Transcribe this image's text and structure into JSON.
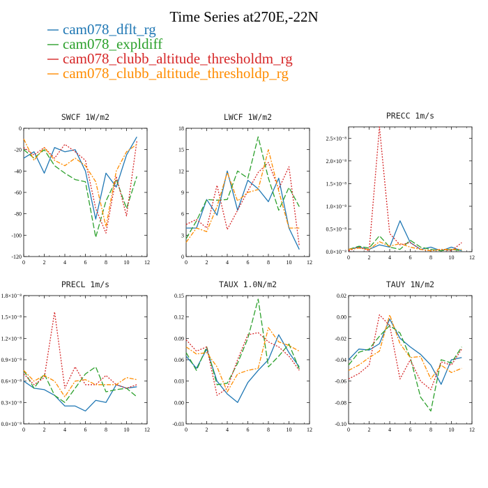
{
  "figure": {
    "title": "Time Series at270E,-22N",
    "legend": [
      {
        "label": "cam078_dflt_rg",
        "color": "#1f77b4"
      },
      {
        "label": "cam078_expldiff",
        "color": "#2ca02c"
      },
      {
        "label": "cam078_clubb_altitude_thresholdm_rg",
        "color": "#d62728"
      },
      {
        "label": "cam078_clubb_altitude_thresholdp_rg",
        "color": "#ff8c00"
      }
    ]
  },
  "chart_data": [
    {
      "type": "line",
      "title": "SWCF  1W/m2",
      "x": [
        0,
        1,
        2,
        3,
        4,
        5,
        6,
        7,
        8,
        9,
        10,
        11
      ],
      "xlim": [
        0,
        12
      ],
      "ylim": [
        -120,
        0
      ],
      "xticks": [
        "0",
        "2",
        "4",
        "6",
        "8",
        "10",
        "12"
      ],
      "yticks": [
        "0",
        "-20",
        "-40",
        "-60",
        "-80",
        "-100",
        "-120"
      ],
      "series": [
        {
          "name": "cam078_dflt_rg",
          "values": [
            -28,
            -22,
            -42,
            -18,
            -22,
            -20,
            -40,
            -85,
            -42,
            -55,
            -25,
            -8
          ]
        },
        {
          "name": "cam078_expldiff",
          "values": [
            -20,
            -28,
            -20,
            -35,
            -42,
            -48,
            -50,
            -102,
            -68,
            -48,
            -75,
            -45
          ]
        },
        {
          "name": "cam078_clubb_altitude_thresholdm_rg",
          "values": [
            -18,
            -25,
            -18,
            -28,
            -15,
            -22,
            -30,
            -75,
            -98,
            -45,
            -82,
            -12
          ]
        },
        {
          "name": "cam078_clubb_altitude_thresholdp_rg",
          "values": [
            -10,
            -30,
            -18,
            -30,
            -35,
            -28,
            -35,
            -50,
            -92,
            -40,
            -22,
            -15
          ]
        }
      ]
    },
    {
      "type": "line",
      "title": "LWCF  1W/m2",
      "x": [
        0,
        1,
        2,
        3,
        4,
        5,
        6,
        7,
        8,
        9,
        10,
        11
      ],
      "xlim": [
        0,
        12
      ],
      "ylim": [
        0,
        18
      ],
      "xticks": [
        "0",
        "2",
        "4",
        "6",
        "8",
        "10",
        "12"
      ],
      "yticks": [
        "0",
        "3",
        "6",
        "9",
        "12",
        "15",
        "18"
      ],
      "series": [
        {
          "name": "cam078_dflt_rg",
          "values": [
            4,
            4,
            8,
            5.8,
            12,
            6.5,
            10.7,
            9.5,
            7.7,
            11,
            4,
            1
          ]
        },
        {
          "name": "cam078_expldiff",
          "values": [
            2.5,
            5,
            8,
            7.9,
            8,
            12,
            11,
            16.8,
            11,
            6.5,
            9.7,
            7
          ]
        },
        {
          "name": "cam078_clubb_altitude_thresholdm_rg",
          "values": [
            4.5,
            5.2,
            4,
            10,
            3.8,
            6.5,
            9.2,
            11.8,
            13.2,
            9.5,
            12.6,
            1.5
          ]
        },
        {
          "name": "cam078_clubb_altitude_thresholdp_rg",
          "values": [
            2,
            4,
            3.5,
            7,
            11.8,
            7.8,
            9,
            9.4,
            15,
            9.2,
            4,
            4
          ]
        }
      ]
    },
    {
      "type": "line",
      "title": "PRECC  1m/s",
      "x": [
        0,
        1,
        2,
        3,
        4,
        5,
        6,
        7,
        8,
        9,
        10,
        11
      ],
      "xlim": [
        0,
        12
      ],
      "ylim": [
        0,
        2.75e-08
      ],
      "xticks": [
        "0",
        "2",
        "4",
        "6",
        "8",
        "10",
        "12"
      ],
      "yticks": [
        "0.0×10⁻⁸",
        "0.5×10⁻⁸",
        "1.0×10⁻⁸",
        "1.5×10⁻⁸",
        "2.0×10⁻⁸",
        "2.5×10⁻⁸"
      ],
      "series": [
        {
          "name": "cam078_dflt_rg",
          "values": [
            5e-10,
            1e-09,
            5e-10,
            1.5e-09,
            1e-09,
            6.8e-09,
            2e-09,
            5e-10,
            1e-09,
            2e-10,
            1e-09,
            2e-10
          ]
        },
        {
          "name": "cam078_expldiff",
          "values": [
            5e-10,
            1.2e-09,
            8e-10,
            3.5e-09,
            1e-09,
            5e-10,
            2.5e-09,
            1e-09,
            5e-10,
            2e-10,
            5e-10,
            2e-10
          ]
        },
        {
          "name": "cam078_clubb_altitude_thresholdm_rg",
          "values": [
            2e-10,
            1e-09,
            2e-10,
            2.75e-08,
            4e-09,
            1.5e-09,
            2e-09,
            5e-10,
            2e-10,
            5e-10,
            2e-10,
            2e-09
          ]
        },
        {
          "name": "cam078_clubb_altitude_thresholdp_rg",
          "values": [
            5e-10,
            8e-10,
            5e-10,
            2.2e-09,
            1.2e-09,
            1.8e-09,
            1e-09,
            5e-10,
            2e-10,
            5e-10,
            5e-10,
            5e-10
          ]
        }
      ]
    },
    {
      "type": "line",
      "title": "PRECL  1m/s",
      "x": [
        0,
        1,
        2,
        3,
        4,
        5,
        6,
        7,
        8,
        9,
        10,
        11
      ],
      "xlim": [
        0,
        12
      ],
      "ylim": [
        0,
        1.8e-08
      ],
      "xticks": [
        "0",
        "2",
        "4",
        "6",
        "8",
        "10",
        "12"
      ],
      "yticks": [
        "0.0×10⁻⁸",
        "0.3×10⁻⁸",
        "0.6×10⁻⁸",
        "0.9×10⁻⁸",
        "1.2×10⁻⁸",
        "1.5×10⁻⁸",
        "1.8×10⁻⁸"
      ],
      "series": [
        {
          "name": "cam078_dflt_rg",
          "values": [
            6e-09,
            5e-09,
            4.8e-09,
            4e-09,
            2.5e-09,
            2.5e-09,
            1.8e-09,
            3.3e-09,
            3e-09,
            5.5e-09,
            5e-09,
            5.2e-09
          ]
        },
        {
          "name": "cam078_expldiff",
          "values": [
            7.5e-09,
            5e-09,
            7e-09,
            4e-09,
            3e-09,
            5e-09,
            7e-09,
            8e-09,
            4.5e-09,
            4.8e-09,
            5e-09,
            3.8e-09
          ]
        },
        {
          "name": "cam078_clubb_altitude_thresholdm_rg",
          "values": [
            7e-09,
            5.5e-09,
            6.5e-09,
            1.57e-08,
            5e-09,
            8e-09,
            5.5e-09,
            5.5e-09,
            6.8e-09,
            5.5e-09,
            5e-09,
            5.5e-09
          ]
        },
        {
          "name": "cam078_clubb_altitude_thresholdp_rg",
          "values": [
            7.5e-09,
            6e-09,
            6.8e-09,
            6e-09,
            3.8e-09,
            6e-09,
            6.2e-09,
            5.5e-09,
            5.5e-09,
            5.5e-09,
            6.5e-09,
            6.2e-09
          ]
        }
      ]
    },
    {
      "type": "line",
      "title": "TAUX  1.0N/m2",
      "x": [
        0,
        1,
        2,
        3,
        4,
        5,
        6,
        7,
        8,
        9,
        10,
        11
      ],
      "xlim": [
        0,
        12
      ],
      "ylim": [
        -0.03,
        0.15
      ],
      "xticks": [
        "0",
        "2",
        "4",
        "6",
        "8",
        "10",
        "12"
      ],
      "yticks": [
        "-0.03",
        "0.00",
        "0.03",
        "0.06",
        "0.09",
        "0.12",
        "0.15"
      ],
      "series": [
        {
          "name": "cam078_dflt_rg",
          "values": [
            0.065,
            0.048,
            0.075,
            0.03,
            0.012,
            0.0,
            0.028,
            0.045,
            0.06,
            0.095,
            0.07,
            0.05
          ]
        },
        {
          "name": "cam078_expldiff",
          "values": [
            0.07,
            0.045,
            0.078,
            0.025,
            0.027,
            0.055,
            0.09,
            0.145,
            0.05,
            0.065,
            0.082,
            0.047
          ]
        },
        {
          "name": "cam078_clubb_altitude_thresholdm_rg",
          "values": [
            0.088,
            0.072,
            0.078,
            0.01,
            0.02,
            0.06,
            0.095,
            0.098,
            0.085,
            0.078,
            0.065,
            0.045
          ]
        },
        {
          "name": "cam078_clubb_altitude_thresholdp_rg",
          "values": [
            0.078,
            0.068,
            0.07,
            0.05,
            0.015,
            0.04,
            0.045,
            0.048,
            0.105,
            0.085,
            0.08,
            0.072
          ]
        }
      ]
    },
    {
      "type": "line",
      "title": "TAUY  1N/m2",
      "x": [
        0,
        1,
        2,
        3,
        4,
        5,
        6,
        7,
        8,
        9,
        10,
        11
      ],
      "xlim": [
        0,
        12
      ],
      "ylim": [
        -0.1,
        0.02
      ],
      "xticks": [
        "0",
        "2",
        "4",
        "6",
        "8",
        "10",
        "12"
      ],
      "yticks": [
        "-0.10",
        "-0.08",
        "-0.06",
        "-0.04",
        "-0.02",
        "0.00",
        "0.02"
      ],
      "series": [
        {
          "name": "cam078_dflt_rg",
          "values": [
            -0.04,
            -0.03,
            -0.031,
            -0.025,
            -0.002,
            -0.02,
            -0.028,
            -0.035,
            -0.045,
            -0.063,
            -0.04,
            -0.038
          ]
        },
        {
          "name": "cam078_expldiff",
          "values": [
            -0.045,
            -0.033,
            -0.03,
            -0.018,
            -0.008,
            -0.015,
            -0.038,
            -0.075,
            -0.088,
            -0.04,
            -0.043,
            -0.028
          ]
        },
        {
          "name": "cam078_clubb_altitude_thresholdm_rg",
          "values": [
            -0.058,
            -0.053,
            -0.045,
            0.002,
            -0.008,
            -0.058,
            -0.04,
            -0.06,
            -0.068,
            -0.042,
            -0.045,
            -0.03
          ]
        },
        {
          "name": "cam078_clubb_altitude_thresholdp_rg",
          "values": [
            -0.05,
            -0.045,
            -0.038,
            -0.032,
            0.002,
            -0.025,
            -0.038,
            -0.037,
            -0.058,
            -0.045,
            -0.052,
            -0.048
          ]
        }
      ]
    }
  ]
}
